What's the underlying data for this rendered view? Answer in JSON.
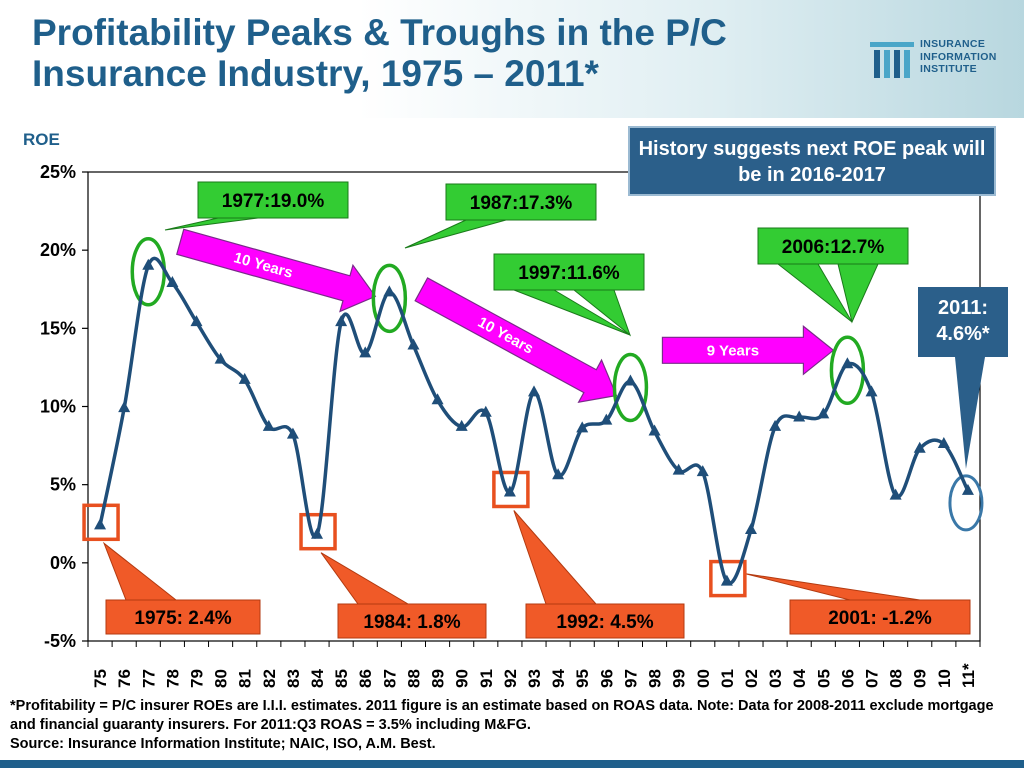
{
  "title": "Profitability Peaks & Troughs in the P/C Insurance Industry, 1975 – 2011*",
  "logo": {
    "lines": [
      "INSURANCE",
      "INFORMATION",
      "INSTITUTE"
    ]
  },
  "callout": "History suggests next ROE peak will be in 2016-2017",
  "note_2011": [
    "2011:",
    "4.6%*"
  ],
  "footnote": {
    "line1": "*Profitability =  P/C insurer ROEs are I.I.I. estimates. 2011 figure is an estimate based on ROAS data.  Note:  Data for 2008-2011 exclude mortgage and financial guaranty insurers.  For 2011:Q3 ROAS = 3.5% including M&FG.",
    "line2": "Source:  Insurance Information Institute; NAIC, ISO, A.M. Best."
  },
  "colors": {
    "title": "#1f5f8b",
    "line": "#1f4e79",
    "peak_circle": "#22aa22",
    "trough_box": "#e8501f",
    "peak_label_bg": "#33cc33",
    "trough_label_bg": "#f05a28",
    "arrow": "#ff00ff",
    "box_bg": "#2b5f8a"
  },
  "chart_data": {
    "type": "line",
    "ylabel": "ROE",
    "ylim": [
      -5,
      25
    ],
    "yticks": [
      "25%",
      "20%",
      "15%",
      "10%",
      "5%",
      "0%",
      "-5%"
    ],
    "ytick_values": [
      25,
      20,
      15,
      10,
      5,
      0,
      -5
    ],
    "categories": [
      "75",
      "76",
      "77",
      "78",
      "79",
      "80",
      "81",
      "82",
      "83",
      "84",
      "85",
      "86",
      "87",
      "88",
      "89",
      "90",
      "91",
      "92",
      "93",
      "94",
      "95",
      "96",
      "97",
      "98",
      "99",
      "00",
      "01",
      "02",
      "03",
      "04",
      "05",
      "06",
      "07",
      "08",
      "09",
      "10",
      "11*"
    ],
    "values": [
      2.4,
      9.9,
      19.0,
      17.9,
      15.4,
      13.0,
      11.7,
      8.7,
      8.2,
      1.8,
      15.4,
      13.4,
      17.3,
      13.9,
      10.4,
      8.7,
      9.6,
      4.5,
      10.9,
      5.6,
      8.6,
      9.1,
      11.6,
      8.4,
      5.9,
      5.8,
      -1.2,
      2.1,
      8.7,
      9.3,
      9.5,
      12.7,
      10.9,
      4.3,
      7.3,
      7.6,
      4.6
    ],
    "peaks": [
      {
        "label": "1977:19.0%",
        "index": 2
      },
      {
        "label": "1987:17.3%",
        "index": 12
      },
      {
        "label": "1997:11.6%",
        "index": 22
      },
      {
        "label": "2006:12.7%",
        "index": 31
      }
    ],
    "troughs": [
      {
        "label": "1975: 2.4%",
        "index": 0
      },
      {
        "label": "1984: 1.8%",
        "index": 9
      },
      {
        "label": "1992: 4.5%",
        "index": 17
      },
      {
        "label": "2001: -1.2%",
        "index": 26
      }
    ],
    "cycle_arrows": [
      "10 Years",
      "10 Years",
      "9 Years"
    ]
  }
}
